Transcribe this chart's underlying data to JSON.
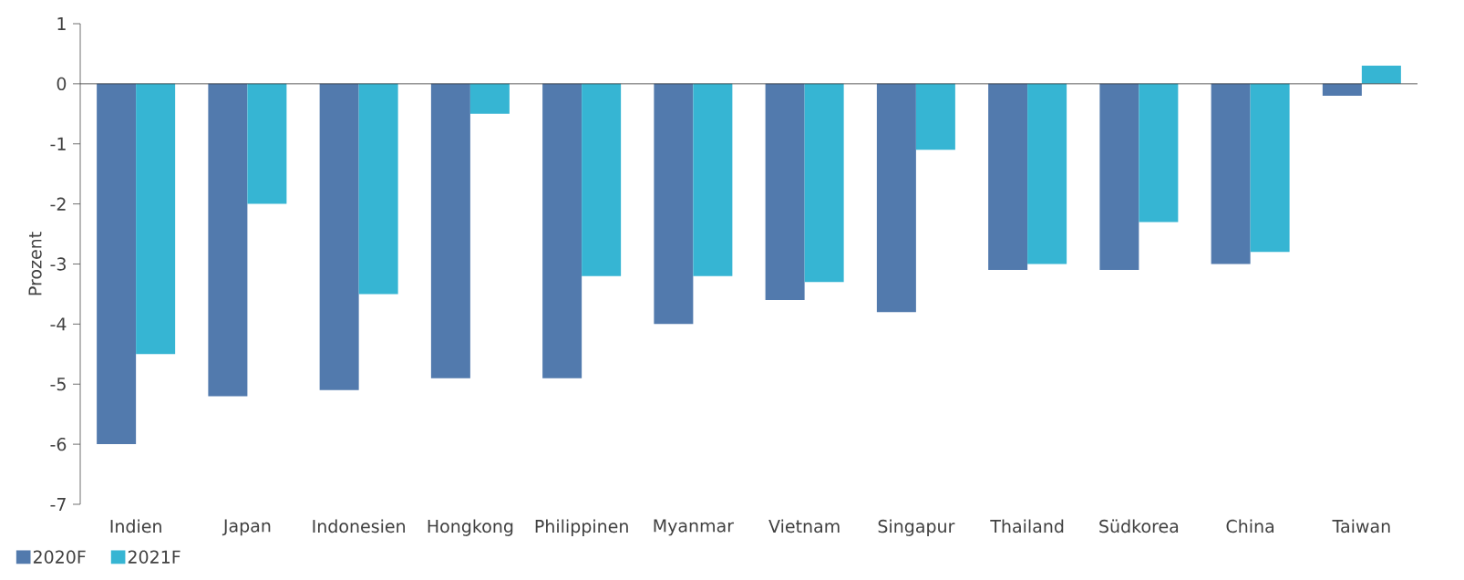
{
  "chart_data": {
    "type": "bar",
    "ylabel": "Prozent",
    "categories": [
      "Indien",
      "Japan",
      "Indonesien",
      "Hongkong",
      "Philippinen",
      "Myanmar",
      "Vietnam",
      "Singapur",
      "Thailand",
      "Südkorea",
      "China",
      "Taiwan"
    ],
    "series": [
      {
        "name": "2020F",
        "color": "#527aad",
        "values": [
          -6.0,
          -5.2,
          -5.1,
          -4.9,
          -4.9,
          -4.0,
          -3.6,
          -3.8,
          -3.1,
          -3.1,
          -3.0,
          -0.2
        ]
      },
      {
        "name": "2021F",
        "color": "#36b5d3",
        "values": [
          -4.5,
          -2.0,
          -3.5,
          -0.5,
          -3.2,
          -3.2,
          -3.3,
          -1.1,
          -3.0,
          -2.3,
          -2.8,
          0.3
        ]
      }
    ],
    "ylim": [
      -7,
      1
    ],
    "yticks": [
      -7,
      -6,
      -5,
      -4,
      -3,
      -2,
      -1,
      0,
      1
    ],
    "grid": false,
    "legend": "bottom left",
    "ref_lines": [
      {
        "axis": "y",
        "value": 0
      }
    ]
  }
}
